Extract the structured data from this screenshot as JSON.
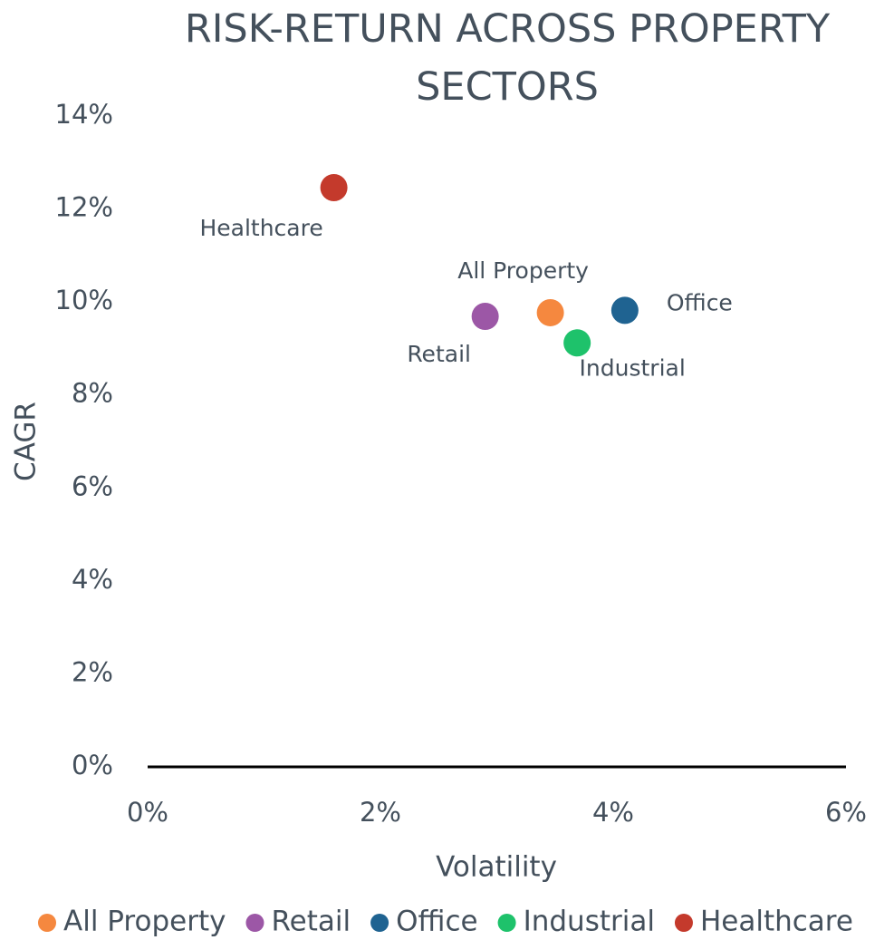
{
  "chart_data": {
    "type": "scatter",
    "title": "RISK-RETURN ACROSS PROPERTY SECTORS",
    "x_label": "Volatility",
    "y_label": "CAGR",
    "xlim": [
      0,
      6
    ],
    "xticks": [
      {
        "value": 0,
        "label": "0%"
      },
      {
        "value": 2,
        "label": "2%"
      },
      {
        "value": 4,
        "label": "4%"
      },
      {
        "value": 6,
        "label": "6%"
      }
    ],
    "ylim": [
      0,
      14
    ],
    "yticks": [
      {
        "value": 0,
        "label": "0%"
      },
      {
        "value": 2,
        "label": "2%"
      },
      {
        "value": 4,
        "label": "4%"
      },
      {
        "value": 6,
        "label": "6%"
      },
      {
        "value": 8,
        "label": "8%"
      },
      {
        "value": 10,
        "label": "10%"
      },
      {
        "value": 12,
        "label": "12%"
      },
      {
        "value": 14,
        "label": "14%"
      }
    ],
    "grid": false,
    "legend": "bottom",
    "series": [
      {
        "name": "All Property",
        "color": "#f5883f",
        "x": [
          3.46
        ],
        "values": [
          9.77
        ]
      },
      {
        "name": "Retail",
        "color": "#9c57a6",
        "x": [
          2.9
        ],
        "values": [
          9.69
        ]
      },
      {
        "name": "Office",
        "color": "#1f6391",
        "x": [
          4.1
        ],
        "values": [
          9.82
        ]
      },
      {
        "name": "Industrial",
        "color": "#1ec26b",
        "x": [
          3.69
        ],
        "values": [
          9.12
        ]
      },
      {
        "name": "Healthcare",
        "color": "#c43a2c",
        "x": [
          1.6
        ],
        "values": [
          12.46
        ]
      }
    ]
  }
}
